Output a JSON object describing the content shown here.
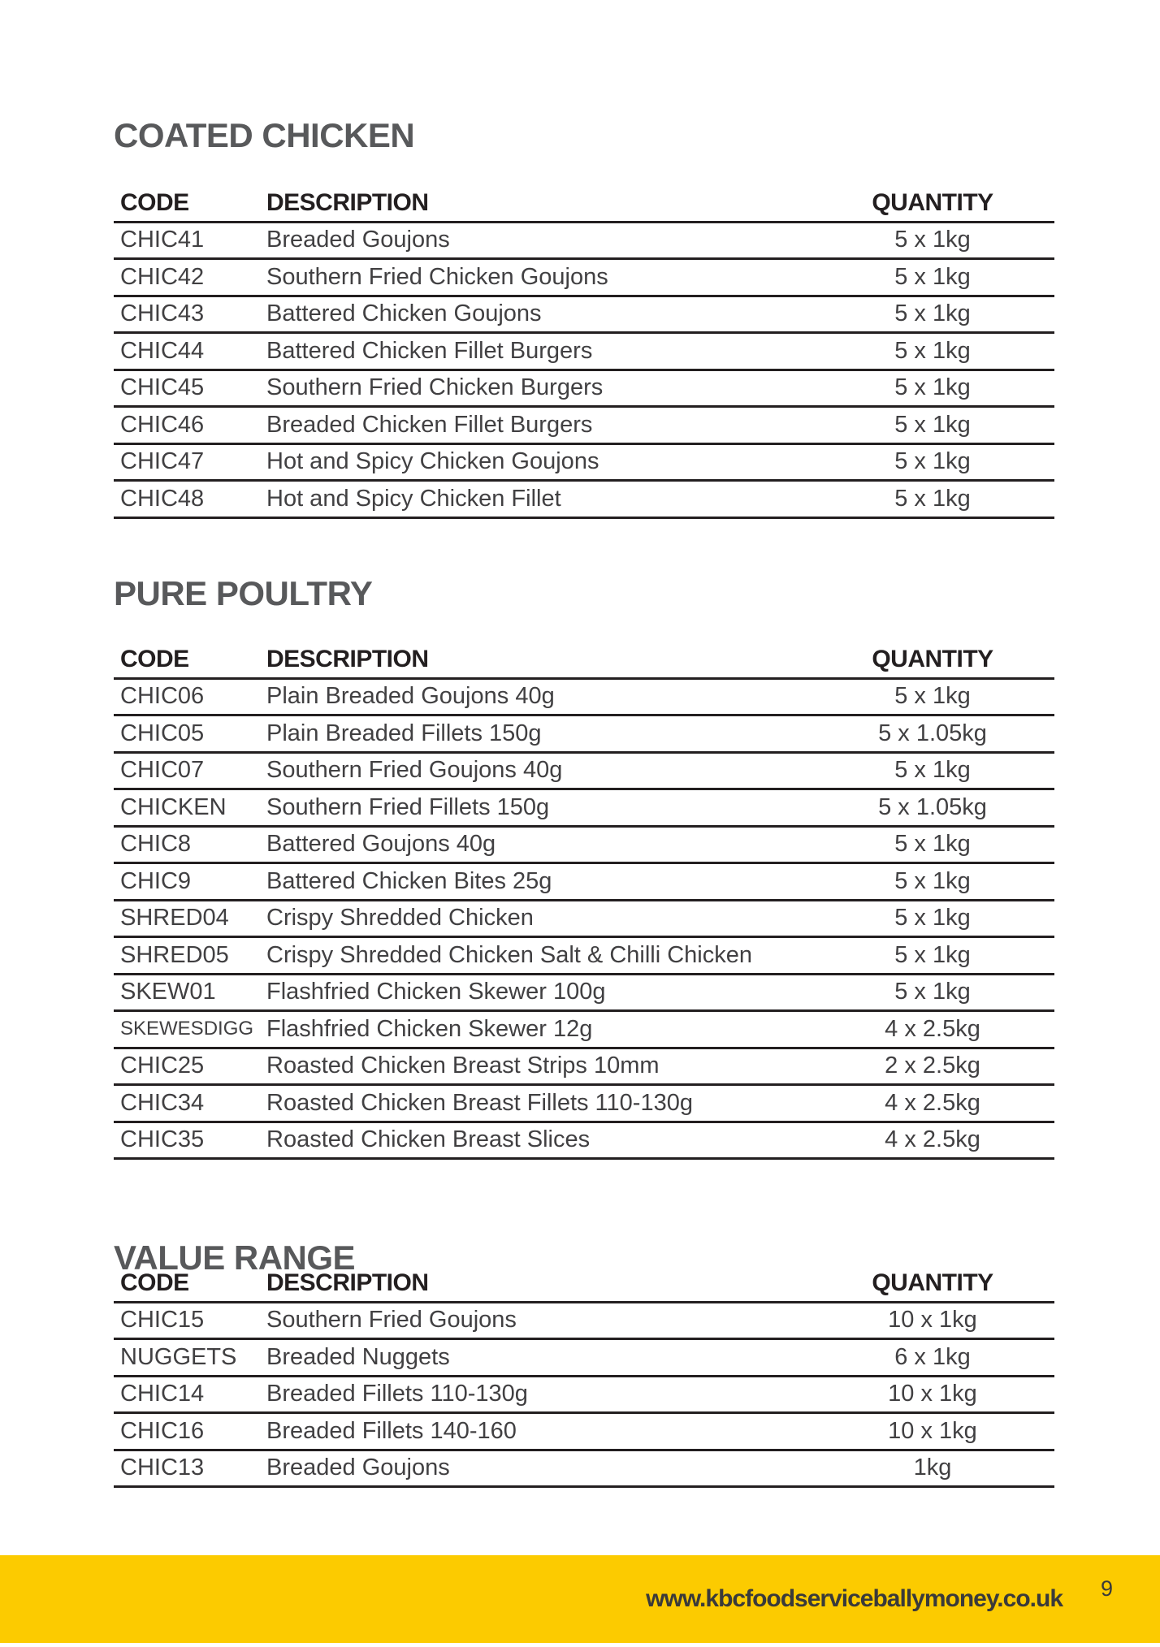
{
  "columns": {
    "code": "CODE",
    "description": "DESCRIPTION",
    "quantity": "QUANTITY"
  },
  "sections": [
    {
      "title": "COATED CHICKEN",
      "rows": [
        {
          "code": "CHIC41",
          "description": "Breaded Goujons",
          "quantity": "5 x 1kg"
        },
        {
          "code": "CHIC42",
          "description": "Southern Fried Chicken Goujons",
          "quantity": "5 x 1kg"
        },
        {
          "code": "CHIC43",
          "description": "Battered Chicken Goujons",
          "quantity": "5 x 1kg"
        },
        {
          "code": "CHIC44",
          "description": "Battered Chicken Fillet Burgers",
          "quantity": "5 x 1kg"
        },
        {
          "code": "CHIC45",
          "description": "Southern Fried Chicken Burgers",
          "quantity": "5 x 1kg"
        },
        {
          "code": "CHIC46",
          "description": "Breaded Chicken Fillet Burgers",
          "quantity": "5 x 1kg"
        },
        {
          "code": "CHIC47",
          "description": "Hot and Spicy Chicken Goujons",
          "quantity": "5 x 1kg"
        },
        {
          "code": "CHIC48",
          "description": "Hot and Spicy Chicken Fillet",
          "quantity": "5 x 1kg"
        }
      ]
    },
    {
      "title": "PURE POULTRY",
      "rows": [
        {
          "code": "CHIC06",
          "description": "Plain Breaded Goujons 40g",
          "quantity": "5 x 1kg"
        },
        {
          "code": "CHIC05",
          "description": "Plain Breaded Fillets 150g",
          "quantity": "5 x 1.05kg"
        },
        {
          "code": "CHIC07",
          "description": "Southern Fried Goujons 40g",
          "quantity": "5 x 1kg"
        },
        {
          "code": "CHICKEN",
          "description": "Southern Fried Fillets 150g",
          "quantity": "5 x 1.05kg"
        },
        {
          "code": "CHIC8",
          "description": "Battered Goujons 40g",
          "quantity": "5 x 1kg"
        },
        {
          "code": "CHIC9",
          "description": "Battered Chicken Bites 25g",
          "quantity": "5 x 1kg"
        },
        {
          "code": "SHRED04",
          "description": "Crispy Shredded Chicken",
          "quantity": "5 x 1kg"
        },
        {
          "code": "SHRED05",
          "description": "Crispy Shredded Chicken Salt & Chilli Chicken",
          "quantity": "5 x 1kg"
        },
        {
          "code": "SKEW01",
          "description": "Flashfried Chicken Skewer 100g",
          "quantity": "5 x 1kg"
        },
        {
          "code": "SKEWESDIGG",
          "description": "Flashfried Chicken Skewer 12g",
          "quantity": "4 x 2.5kg"
        },
        {
          "code": "CHIC25",
          "description": "Roasted Chicken Breast Strips 10mm",
          "quantity": "2 x 2.5kg"
        },
        {
          "code": "CHIC34",
          "description": "Roasted Chicken Breast Fillets 110-130g",
          "quantity": "4 x 2.5kg"
        },
        {
          "code": "CHIC35",
          "description": "Roasted Chicken Breast Slices",
          "quantity": "4 x 2.5kg"
        }
      ]
    },
    {
      "title": "VALUE RANGE",
      "rows": [
        {
          "code": "CHIC15",
          "description": "Southern Fried Goujons",
          "quantity": "10 x 1kg"
        },
        {
          "code": "NUGGETS",
          "description": "Breaded Nuggets",
          "quantity": "6 x 1kg"
        },
        {
          "code": "CHIC14",
          "description": "Breaded Fillets 110-130g",
          "quantity": "10 x 1kg"
        },
        {
          "code": "CHIC16",
          "description": "Breaded Fillets 140-160",
          "quantity": "10 x 1kg"
        },
        {
          "code": "CHIC13",
          "description": "Breaded Goujons",
          "quantity": "1kg"
        }
      ]
    }
  ],
  "footer": {
    "website": "www.kbcfoodserviceballymoney.co.uk",
    "page_number": "9",
    "bar_color": "#FCCB00"
  }
}
